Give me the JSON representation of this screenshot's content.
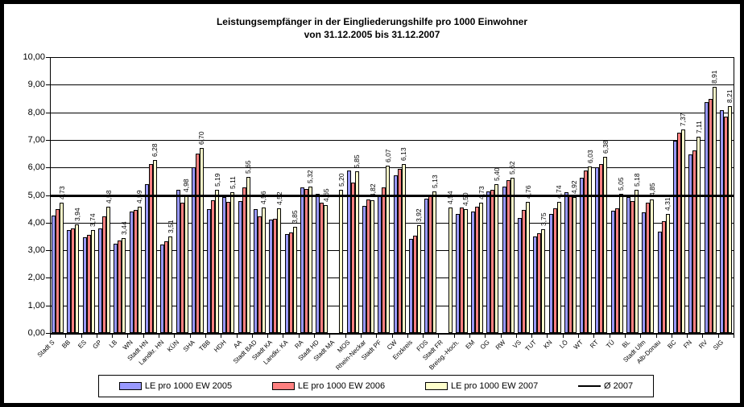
{
  "chart_data": {
    "type": "bar",
    "title_line1": "Leistungsempfänger in der Eingliederungshilfe pro 1000 Einwohner",
    "title_line2": "von 31.12.2005 bis 31.12.2007",
    "ylim": [
      0,
      10
    ],
    "ytick_step": 1,
    "ytick_labels": [
      "0,00",
      "1,00",
      "2,00",
      "3,00",
      "4,00",
      "5,00",
      "6,00",
      "7,00",
      "8,00",
      "9,00",
      "10,00"
    ],
    "grid": true,
    "legend_position": "bottom",
    "categories": [
      "Stadt S",
      "BB",
      "ES",
      "GP",
      "LB",
      "WN",
      "Stadt HN",
      "Landkr. HN",
      "KÜN",
      "SHA",
      "TBB",
      "HDH",
      "AA",
      "Stadt BAD",
      "Stadt KA",
      "Landkr. KA",
      "RA",
      "Stadt HD",
      "Stadt MA",
      "MOS",
      "Rhein-Neckar",
      "Stadt PF",
      "CW",
      "Enzkreis",
      "FDS",
      "Stadt FR",
      "Breisg.-Hoch.",
      "EM",
      "OG",
      "RW",
      "VS",
      "TUT",
      "KN",
      "LÖ",
      "WT",
      "RT",
      "TÜ",
      "BL",
      "Stadt Ulm",
      "Alb-Donau",
      "BC",
      "FN",
      "RV",
      "SIG"
    ],
    "series": [
      {
        "name": "LE pro 1000 EW 2005",
        "color": "#9999FF",
        "values": [
          4.25,
          3.72,
          3.47,
          3.78,
          3.24,
          4.4,
          5.38,
          3.22,
          5.19,
          6.0,
          4.48,
          4.92,
          4.78,
          4.5,
          4.12,
          3.58,
          5.27,
          5.05,
          null,
          5.88,
          4.62,
          4.95,
          5.7,
          3.41,
          4.87,
          null,
          4.31,
          4.41,
          5.14,
          5.31,
          4.16,
          3.51,
          4.31,
          5.11,
          5.63,
          6.0,
          4.43,
          4.92,
          4.38,
          3.68,
          6.96,
          6.48,
          8.37,
          8.08
        ]
      },
      {
        "name": "LE pro 1000 EW 2006",
        "color": "#FF8080",
        "values": [
          4.5,
          3.8,
          3.56,
          4.22,
          3.36,
          4.46,
          6.13,
          3.33,
          4.73,
          6.51,
          4.8,
          4.75,
          5.27,
          4.24,
          4.14,
          3.64,
          5.22,
          4.72,
          null,
          5.45,
          4.84,
          5.28,
          5.95,
          3.53,
          5.02,
          null,
          4.56,
          4.59,
          5.19,
          5.53,
          4.46,
          3.61,
          4.51,
          5.01,
          5.88,
          6.13,
          4.51,
          4.77,
          4.73,
          4.05,
          7.26,
          6.62,
          8.47,
          7.83
        ]
      },
      {
        "name": "LE pro 1000 EW 2007",
        "color": "#FFFFCC",
        "values": [
          4.73,
          3.94,
          3.74,
          4.58,
          3.44,
          4.59,
          6.28,
          3.51,
          4.98,
          6.7,
          5.19,
          5.11,
          5.65,
          4.56,
          4.52,
          3.85,
          5.32,
          4.65,
          5.2,
          5.85,
          4.82,
          6.07,
          6.13,
          3.92,
          5.13,
          4.54,
          4.5,
          4.73,
          5.4,
          5.62,
          4.76,
          3.75,
          4.74,
          4.92,
          6.03,
          6.38,
          5.05,
          5.18,
          4.85,
          4.31,
          7.37,
          7.11,
          8.91,
          8.21
        ],
        "data_labels": [
          "4,73",
          "3,94",
          "3,74",
          "4,58",
          "3,44",
          "4,59",
          "6,28",
          "3,51",
          "4,98",
          "6,70",
          "5,19",
          "5,11",
          "5,65",
          "4,56",
          "4,52",
          "3,85",
          "5,32",
          "4,65",
          "5,20",
          "5,85",
          "4,82",
          "6,07",
          "6,13",
          "3,92",
          "5,13",
          "4,54",
          "4,50",
          "4,73",
          "5,40",
          "5,62",
          "4,76",
          "3,75",
          "4,74",
          "4,92",
          "6,03",
          "6,38",
          "5,05",
          "5,18",
          "4,85",
          "4,31",
          "7,37",
          "7,11",
          "8,91",
          "8,21"
        ]
      }
    ],
    "average_line": {
      "label": "Ø 2007",
      "value": 5.0,
      "color": "#000000"
    }
  }
}
